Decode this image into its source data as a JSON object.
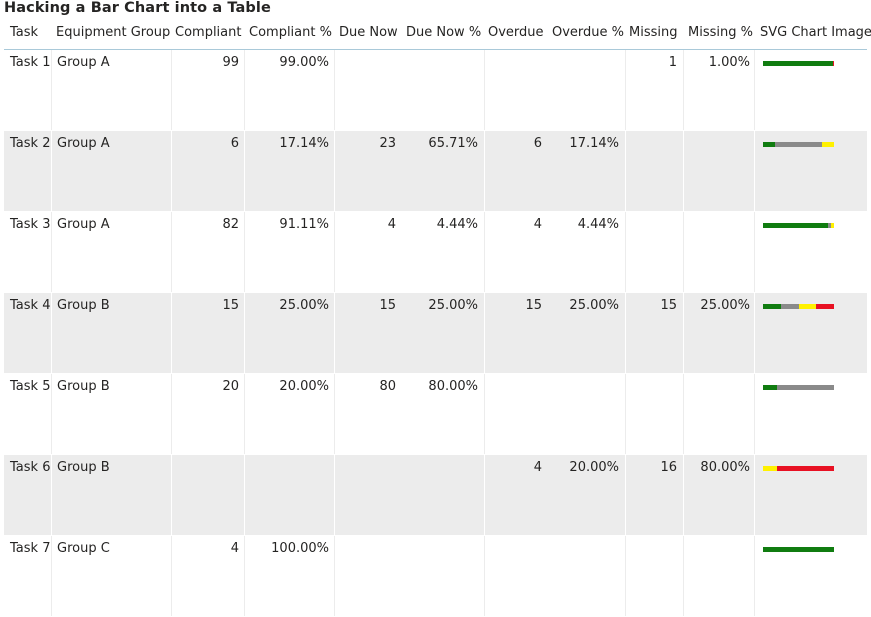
{
  "title": "Hacking a Bar Chart into a Table",
  "colors": {
    "compliant": "#107c10",
    "due_now": "#8a8a8a",
    "overdue": "#fff100",
    "missing": "#e81123",
    "alt_row": "#ececec",
    "header_rule": "#a9c9d9"
  },
  "headers": {
    "task": "Task",
    "group": "Equipment Group",
    "compliant": "Compliant",
    "compliant_pct": "Compliant %",
    "due_now": "Due Now",
    "due_now_pct": "Due Now %",
    "overdue": "Overdue",
    "overdue_pct": "Overdue %",
    "missing": "Missing",
    "missing_pct": "Missing %",
    "chart": "SVG Chart Image"
  },
  "rows": [
    {
      "task": "Task 1",
      "group": "Group A",
      "compliant": "99",
      "compliant_pct": "99.00%",
      "due_now": "",
      "due_now_pct": "",
      "overdue": "",
      "overdue_pct": "",
      "missing": "1",
      "missing_pct": "1.00%",
      "bar": [
        0.99,
        0,
        0,
        0.01
      ]
    },
    {
      "task": "Task 2",
      "group": "Group A",
      "compliant": "6",
      "compliant_pct": "17.14%",
      "due_now": "23",
      "due_now_pct": "65.71%",
      "overdue": "6",
      "overdue_pct": "17.14%",
      "missing": "",
      "missing_pct": "",
      "bar": [
        0.1714,
        0.6571,
        0.1714,
        0
      ]
    },
    {
      "task": "Task 3",
      "group": "Group A",
      "compliant": "82",
      "compliant_pct": "91.11%",
      "due_now": "4",
      "due_now_pct": "4.44%",
      "overdue": "4",
      "overdue_pct": "4.44%",
      "missing": "",
      "missing_pct": "",
      "bar": [
        0.9111,
        0.0444,
        0.0444,
        0
      ]
    },
    {
      "task": "Task 4",
      "group": "Group B",
      "compliant": "15",
      "compliant_pct": "25.00%",
      "due_now": "15",
      "due_now_pct": "25.00%",
      "overdue": "15",
      "overdue_pct": "25.00%",
      "missing": "15",
      "missing_pct": "25.00%",
      "bar": [
        0.25,
        0.25,
        0.25,
        0.25
      ]
    },
    {
      "task": "Task 5",
      "group": "Group B",
      "compliant": "20",
      "compliant_pct": "20.00%",
      "due_now": "80",
      "due_now_pct": "80.00%",
      "overdue": "",
      "overdue_pct": "",
      "missing": "",
      "missing_pct": "",
      "bar": [
        0.2,
        0.8,
        0,
        0
      ]
    },
    {
      "task": "Task 6",
      "group": "Group B",
      "compliant": "",
      "compliant_pct": "",
      "due_now": "",
      "due_now_pct": "",
      "overdue": "4",
      "overdue_pct": "20.00%",
      "missing": "16",
      "missing_pct": "80.00%",
      "bar": [
        0,
        0,
        0.2,
        0.8
      ]
    },
    {
      "task": "Task 7",
      "group": "Group C",
      "compliant": "4",
      "compliant_pct": "100.00%",
      "due_now": "",
      "due_now_pct": "",
      "overdue": "",
      "overdue_pct": "",
      "missing": "",
      "missing_pct": "",
      "bar": [
        1,
        0,
        0,
        0
      ]
    }
  ]
}
